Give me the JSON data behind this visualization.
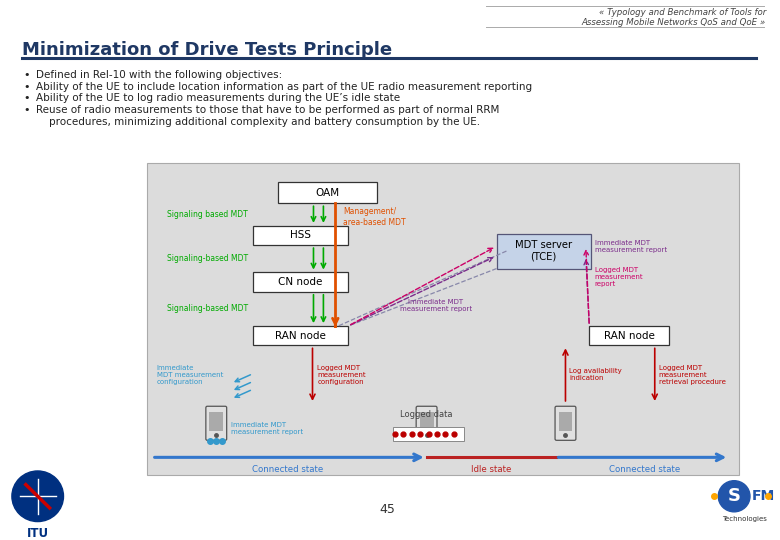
{
  "title": "Minimization of Drive Tests Principle",
  "header_right": "« Typology and Benchmark of Tools for\nAssessing Mobile Networks QoS and QoE »",
  "bullet_points": [
    "Defined in Rel-10 with the following objectives:",
    "Ability of the UE to include location information as part of the UE radio measurement reporting",
    "Ability of the UE to log radio measurements during the UE’s idle state",
    "Reuse of radio measurements to those that have to be performed as part of normal RRM\n    procedures, minimizing additional complexity and battery consumption by the UE."
  ],
  "page_number": "45",
  "bg_color": "#ffffff",
  "title_color": "#1F3864",
  "header_color": "#444444",
  "bullet_color": "#222222",
  "diagram_bg": "#DCDCDC",
  "box_fill": "#ffffff",
  "box_fill_blue": "#C5D3E8",
  "box_edge": "#333333",
  "green_color": "#00AA00",
  "orange_color": "#E05000",
  "red_color": "#BB0000",
  "blue_color": "#0055BB",
  "purple_color": "#7B2D8B",
  "pink_color": "#CC0066",
  "cyan_color": "#3399CC",
  "line_blue": "#3377CC",
  "line_red": "#BB2222",
  "underline_color": "#1F3864"
}
